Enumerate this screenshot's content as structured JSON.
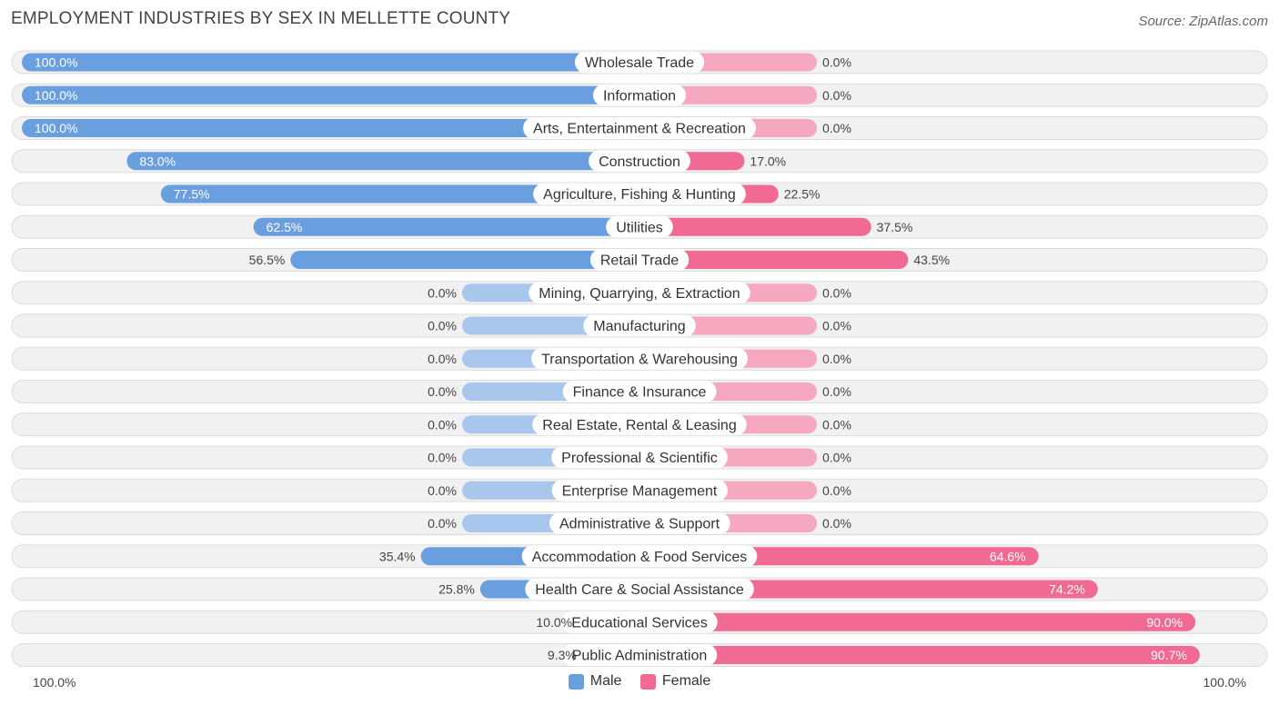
{
  "header": {
    "title": "EMPLOYMENT INDUSTRIES BY SEX IN MELLETTE COUNTY",
    "source": "Source: ZipAtlas.com"
  },
  "colors": {
    "male": "#6a9fdf",
    "male_light": "#a9c6ec",
    "female": "#f06a93",
    "female_light": "#f6a8c0",
    "row_bg": "#f1f1f1",
    "row_border": "#dcdcdc"
  },
  "legend": {
    "male_label": "Male",
    "female_label": "Female"
  },
  "axis": {
    "left_label": "100.0%",
    "right_label": "100.0%"
  },
  "chart_data": {
    "type": "bar",
    "title": "EMPLOYMENT INDUSTRIES BY SEX IN MELLETTE COUNTY",
    "orientation": "horizontal-diverging",
    "xlim": [
      -100,
      100
    ],
    "categories": [
      "Wholesale Trade",
      "Information",
      "Arts, Entertainment & Recreation",
      "Construction",
      "Agriculture, Fishing & Hunting",
      "Utilities",
      "Retail Trade",
      "Mining, Quarrying, & Extraction",
      "Manufacturing",
      "Transportation & Warehousing",
      "Finance & Insurance",
      "Real Estate, Rental & Leasing",
      "Professional & Scientific",
      "Enterprise Management",
      "Administrative & Support",
      "Accommodation & Food Services",
      "Health Care & Social Assistance",
      "Educational Services",
      "Public Administration"
    ],
    "series": [
      {
        "name": "Male",
        "values": [
          100.0,
          100.0,
          100.0,
          83.0,
          77.5,
          62.5,
          56.5,
          0.0,
          0.0,
          0.0,
          0.0,
          0.0,
          0.0,
          0.0,
          0.0,
          35.4,
          25.8,
          10.0,
          9.3
        ],
        "labels": [
          "100.0%",
          "100.0%",
          "100.0%",
          "83.0%",
          "77.5%",
          "62.5%",
          "56.5%",
          "0.0%",
          "0.0%",
          "0.0%",
          "0.0%",
          "0.0%",
          "0.0%",
          "0.0%",
          "0.0%",
          "35.4%",
          "25.8%",
          "10.0%",
          "9.3%"
        ]
      },
      {
        "name": "Female",
        "values": [
          0.0,
          0.0,
          0.0,
          17.0,
          22.5,
          37.5,
          43.5,
          0.0,
          0.0,
          0.0,
          0.0,
          0.0,
          0.0,
          0.0,
          0.0,
          64.6,
          74.2,
          90.0,
          90.7
        ],
        "labels": [
          "0.0%",
          "0.0%",
          "0.0%",
          "17.0%",
          "22.5%",
          "37.5%",
          "43.5%",
          "0.0%",
          "0.0%",
          "0.0%",
          "0.0%",
          "0.0%",
          "0.0%",
          "0.0%",
          "0.0%",
          "64.6%",
          "74.2%",
          "90.0%",
          "90.7%"
        ]
      }
    ],
    "xlabel": "",
    "ylabel": "",
    "legend_position": "bottom-center"
  }
}
